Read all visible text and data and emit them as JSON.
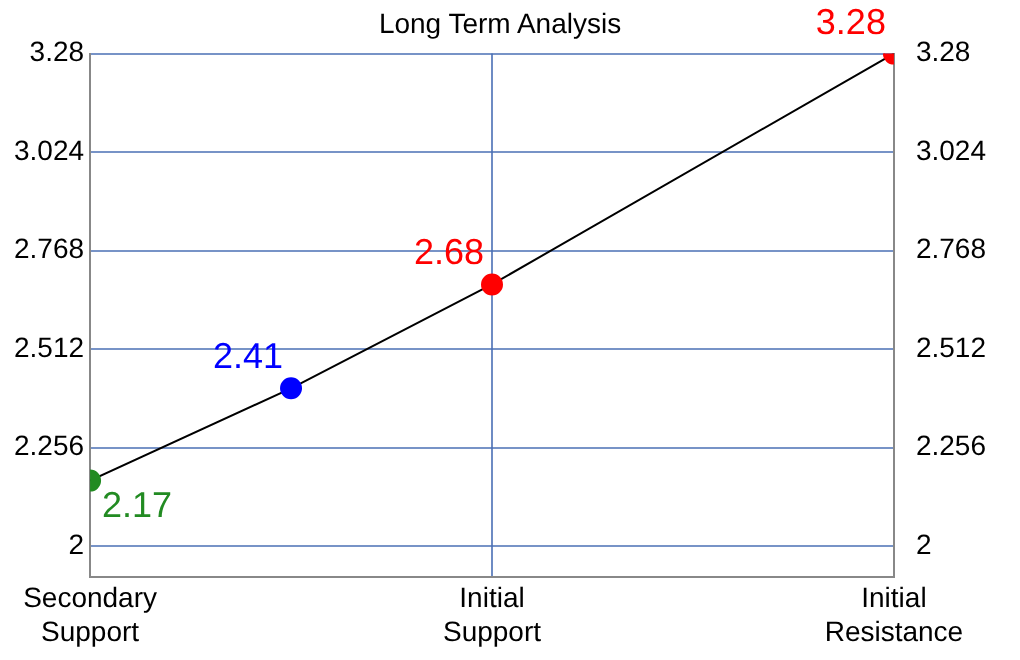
{
  "chart_data": {
    "type": "line",
    "title": "Long Term Analysis",
    "categories": [
      "Secondary\nSupport",
      null,
      "Initial\nSupport",
      null,
      "Initial\nResistance"
    ],
    "ylim": [
      1.92,
      3.28
    ],
    "yticks": [
      2,
      2.256,
      2.512,
      2.768,
      3.024,
      3.28
    ],
    "y2lim": [
      1.92,
      3.28
    ],
    "y2ticks": [
      2,
      2.256,
      2.512,
      2.768,
      3.024,
      3.28
    ],
    "series": [
      {
        "color": "#000000",
        "colors": [
          "#228b22",
          "#0000ff",
          "#ff0000",
          "#ff0000",
          "#ff0000"
        ],
        "values": [
          2.17,
          2.41,
          2.68,
          null,
          3.28
        ]
      }
    ],
    "marker": "circle",
    "line_style": "solid",
    "grid": true,
    "legend": false,
    "data_labels": true
  }
}
